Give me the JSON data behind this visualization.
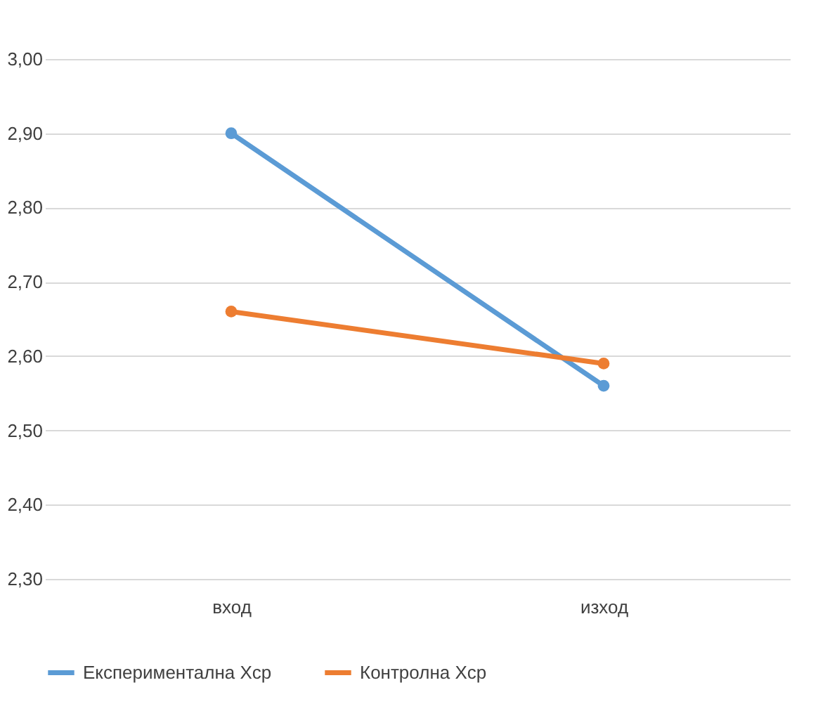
{
  "chart_data": {
    "type": "line",
    "categories": [
      "вход",
      "изход"
    ],
    "series": [
      {
        "name": "Експериментална Xср",
        "color": "#5b9bd5",
        "values": [
          2.9,
          2.56
        ]
      },
      {
        "name": "Контролна Xср",
        "color": "#ed7d31",
        "values": [
          2.66,
          2.59
        ]
      }
    ],
    "ylim": [
      2.3,
      3.0
    ],
    "yticks": [
      {
        "value": 2.3,
        "label": "2,30"
      },
      {
        "value": 2.4,
        "label": "2,40"
      },
      {
        "value": 2.5,
        "label": "2,50"
      },
      {
        "value": 2.6,
        "label": "2,60"
      },
      {
        "value": 2.7,
        "label": "2,70"
      },
      {
        "value": 2.8,
        "label": "2,80"
      },
      {
        "value": 2.9,
        "label": "2,90"
      },
      {
        "value": 3.0,
        "label": "3,00"
      }
    ],
    "grid": "y",
    "legend": "bottom",
    "marker": "circle",
    "line_style": "solid"
  }
}
